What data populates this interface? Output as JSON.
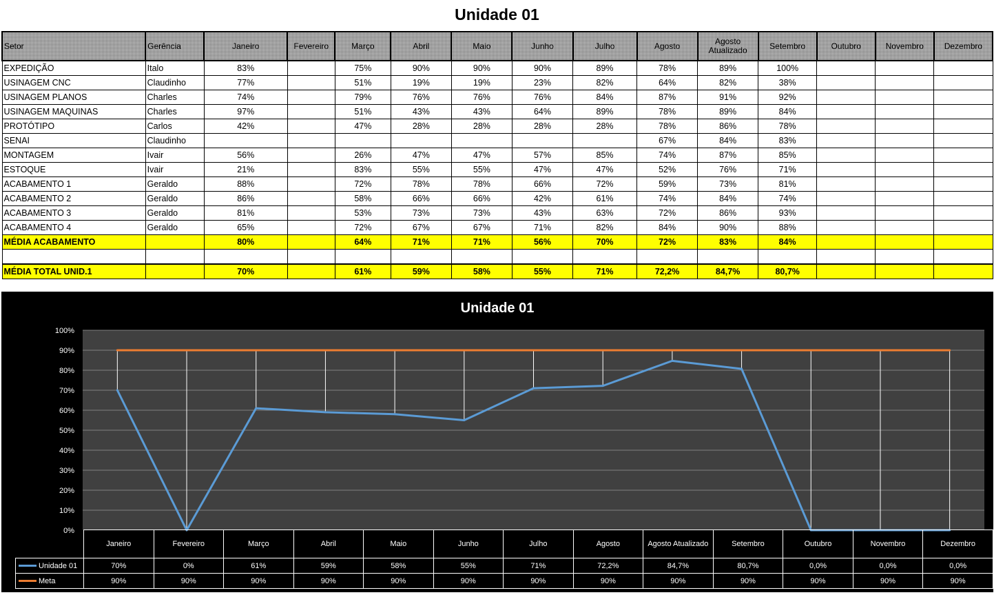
{
  "page_title": "Unidade 01",
  "table": {
    "headers": [
      "Setor",
      "Gerência",
      "Janeiro",
      "Fevereiro",
      "Março",
      "Abril",
      "Maio",
      "Junho",
      "Julho",
      "Agosto",
      "Agosto Atualizado",
      "Setembro",
      "Outubro",
      "Novembro",
      "Dezembro"
    ],
    "rows": [
      [
        "EXPEDIÇÃO",
        "Italo",
        "83%",
        "",
        "75%",
        "90%",
        "90%",
        "90%",
        "89%",
        "78%",
        "89%",
        "100%",
        "",
        "",
        ""
      ],
      [
        "USINAGEM CNC",
        "Claudinho",
        "77%",
        "",
        "51%",
        "19%",
        "19%",
        "23%",
        "82%",
        "64%",
        "82%",
        "38%",
        "",
        "",
        ""
      ],
      [
        "USINAGEM PLANOS",
        "Charles",
        "74%",
        "",
        "79%",
        "76%",
        "76%",
        "76%",
        "84%",
        "87%",
        "91%",
        "92%",
        "",
        "",
        ""
      ],
      [
        "USINAGEM MAQUINAS",
        "Charles",
        "97%",
        "",
        "51%",
        "43%",
        "43%",
        "64%",
        "89%",
        "78%",
        "89%",
        "84%",
        "",
        "",
        ""
      ],
      [
        "PROTÓTIPO",
        "Carlos",
        "42%",
        "",
        "47%",
        "28%",
        "28%",
        "28%",
        "28%",
        "78%",
        "86%",
        "78%",
        "",
        "",
        ""
      ],
      [
        "SENAI",
        "Claudinho",
        "",
        "",
        "",
        "",
        "",
        "",
        "",
        "67%",
        "84%",
        "83%",
        "",
        "",
        ""
      ],
      [
        "MONTAGEM",
        "Ivair",
        "56%",
        "",
        "26%",
        "47%",
        "47%",
        "57%",
        "85%",
        "74%",
        "87%",
        "85%",
        "",
        "",
        ""
      ],
      [
        "ESTOQUE",
        "Ivair",
        "21%",
        "",
        "83%",
        "55%",
        "55%",
        "47%",
        "47%",
        "52%",
        "76%",
        "71%",
        "",
        "",
        ""
      ],
      [
        "ACABAMENTO 1",
        "Geraldo",
        "88%",
        "",
        "72%",
        "78%",
        "78%",
        "66%",
        "72%",
        "59%",
        "73%",
        "81%",
        "",
        "",
        ""
      ],
      [
        "ACABAMENTO 2",
        "Geraldo",
        "86%",
        "",
        "58%",
        "66%",
        "66%",
        "42%",
        "61%",
        "74%",
        "84%",
        "74%",
        "",
        "",
        ""
      ],
      [
        "ACABAMENTO 3",
        "Geraldo",
        "81%",
        "",
        "53%",
        "73%",
        "73%",
        "43%",
        "63%",
        "72%",
        "86%",
        "93%",
        "",
        "",
        ""
      ],
      [
        "ACABAMENTO 4",
        "Geraldo",
        "65%",
        "",
        "72%",
        "67%",
        "67%",
        "71%",
        "82%",
        "84%",
        "90%",
        "88%",
        "",
        "",
        ""
      ]
    ],
    "media_acabamento": [
      "MÉDIA ACABAMENTO",
      "",
      "80%",
      "",
      "64%",
      "71%",
      "71%",
      "56%",
      "70%",
      "72%",
      "83%",
      "84%",
      "",
      "",
      ""
    ],
    "media_total": [
      "MÉDIA TOTAL UNID.1",
      "",
      "70%",
      "",
      "61%",
      "59%",
      "58%",
      "55%",
      "71%",
      "72,2%",
      "84,7%",
      "80,7%",
      "",
      "",
      ""
    ]
  },
  "chart_data": {
    "type": "line",
    "title": "Unidade 01",
    "categories": [
      "Janeiro",
      "Fevereiro",
      "Março",
      "Abril",
      "Maio",
      "Junho",
      "Julho",
      "Agosto",
      "Agosto Atualizado",
      "Setembro",
      "Outubro",
      "Novembro",
      "Dezembro"
    ],
    "ylim": [
      0,
      100
    ],
    "yticks": [
      "0%",
      "10%",
      "20%",
      "30%",
      "40%",
      "50%",
      "60%",
      "70%",
      "80%",
      "90%",
      "100%"
    ],
    "series": [
      {
        "name": "Unidade 01",
        "color": "#5b9bd5",
        "values": [
          70,
          0,
          61,
          59,
          58,
          55,
          71,
          72.2,
          84.7,
          80.7,
          0,
          0,
          0
        ],
        "labels": [
          "70%",
          "0%",
          "61%",
          "59%",
          "58%",
          "55%",
          "71%",
          "72,2%",
          "84,7%",
          "80,7%",
          "0,0%",
          "0,0%",
          "0,0%"
        ]
      },
      {
        "name": "Meta",
        "color": "#ed7d31",
        "values": [
          90,
          90,
          90,
          90,
          90,
          90,
          90,
          90,
          90,
          90,
          90,
          90,
          90
        ],
        "labels": [
          "90%",
          "90%",
          "90%",
          "90%",
          "90%",
          "90%",
          "90%",
          "90%",
          "90%",
          "90%",
          "90%",
          "90%",
          "90%"
        ]
      }
    ],
    "grid": true,
    "legend": "data-table"
  }
}
